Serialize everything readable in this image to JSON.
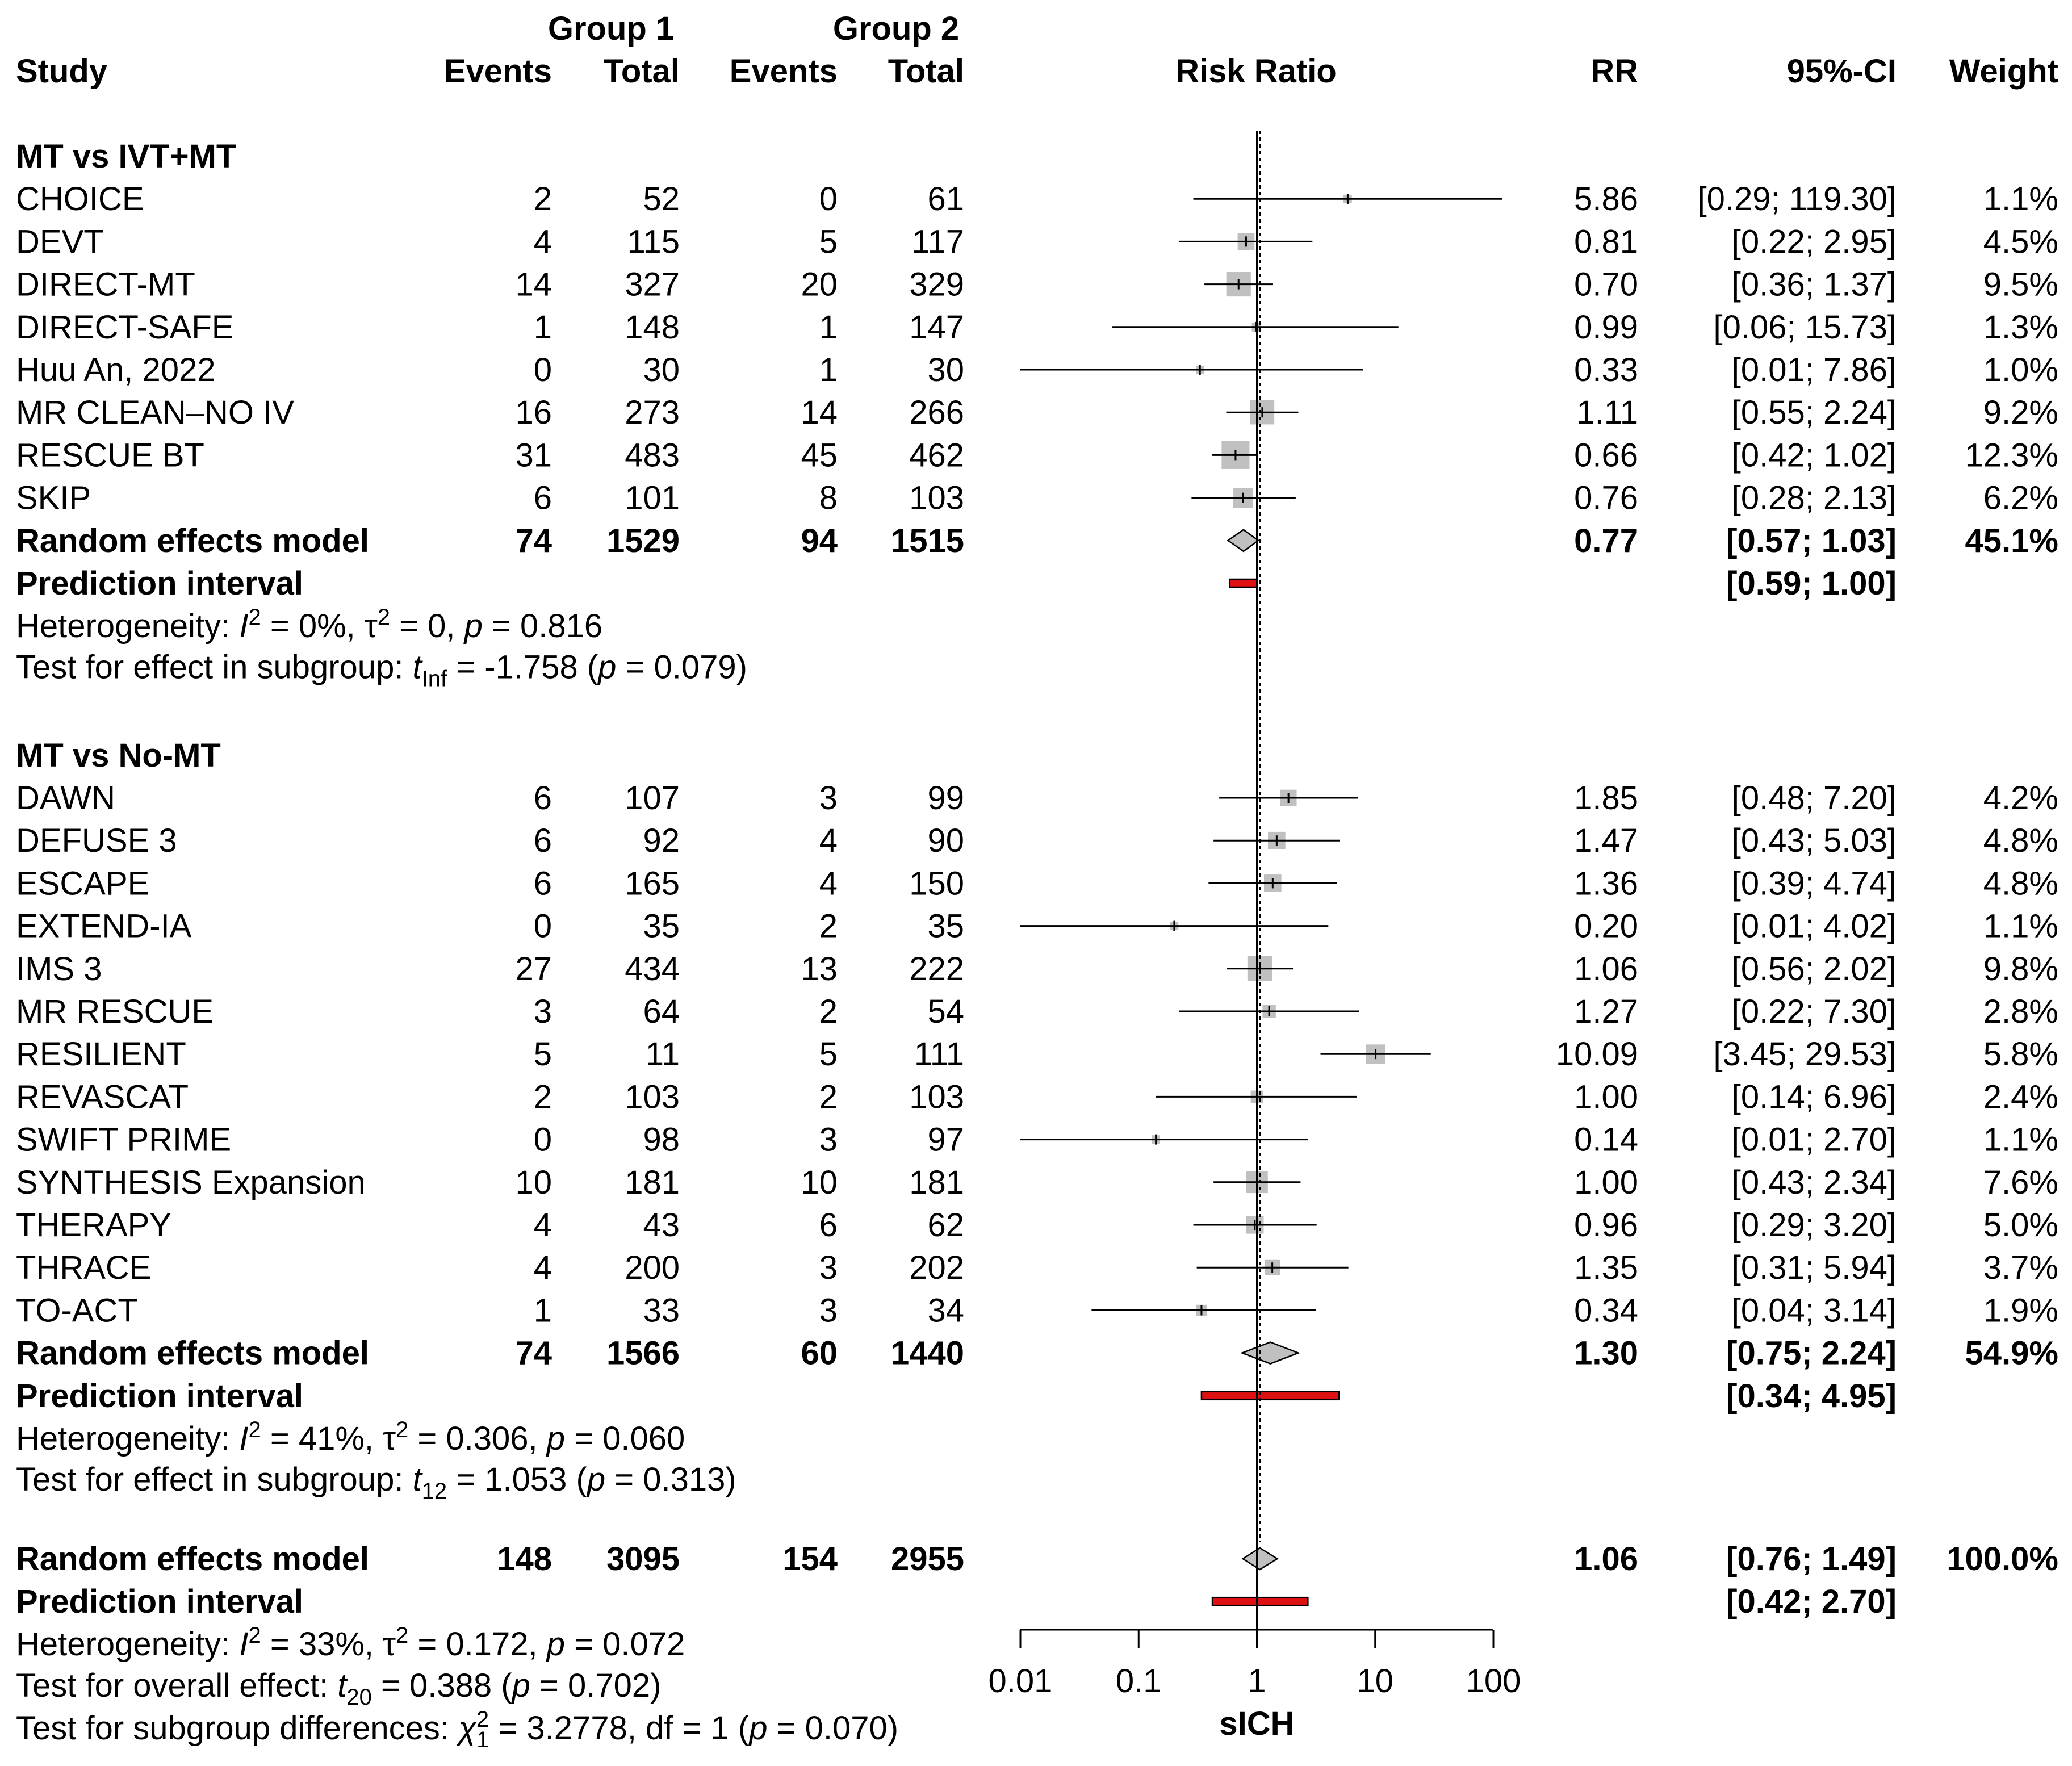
{
  "chart_data": {
    "type": "forest",
    "headers": {
      "study": "Study",
      "group1": "Group 1",
      "group2": "Group 2",
      "events": "Events",
      "total": "Total",
      "effect": "Risk Ratio",
      "rr": "RR",
      "ci": "95%-CI",
      "weight": "Weight"
    },
    "xaxis": {
      "scale": "log",
      "ticks": [
        0.01,
        0.1,
        1,
        10,
        100
      ],
      "tick_labels": [
        "0.01",
        "0.1",
        "1",
        "10",
        "100"
      ],
      "label": "sICH",
      "reference": 1,
      "overall_line": 1.06
    },
    "subgroups": [
      {
        "title": "MT vs IVT+MT",
        "studies": [
          {
            "name": "CHOICE",
            "e1": "2",
            "n1": "52",
            "e2": "0",
            "n2": "61",
            "rr": 5.86,
            "lo": 0.29,
            "hi": 119.3,
            "rr_text": "5.86",
            "ci_text": "[0.29; 119.30]",
            "weight": 1.1,
            "weight_text": "1.1%"
          },
          {
            "name": "DEVT",
            "e1": "4",
            "n1": "115",
            "e2": "5",
            "n2": "117",
            "rr": 0.81,
            "lo": 0.22,
            "hi": 2.95,
            "rr_text": "0.81",
            "ci_text": "[0.22;   2.95]",
            "weight": 4.5,
            "weight_text": "4.5%"
          },
          {
            "name": "DIRECT-MT",
            "e1": "14",
            "n1": "327",
            "e2": "20",
            "n2": "329",
            "rr": 0.7,
            "lo": 0.36,
            "hi": 1.37,
            "rr_text": "0.70",
            "ci_text": "[0.36;   1.37]",
            "weight": 9.5,
            "weight_text": "9.5%"
          },
          {
            "name": "DIRECT-SAFE",
            "e1": "1",
            "n1": "148",
            "e2": "1",
            "n2": "147",
            "rr": 0.99,
            "lo": 0.06,
            "hi": 15.73,
            "rr_text": "0.99",
            "ci_text": "[0.06;  15.73]",
            "weight": 1.3,
            "weight_text": "1.3%"
          },
          {
            "name": "Huu An, 2022",
            "e1": "0",
            "n1": "30",
            "e2": "1",
            "n2": "30",
            "rr": 0.33,
            "lo": 0.01,
            "hi": 7.86,
            "rr_text": "0.33",
            "ci_text": "[0.01;   7.86]",
            "weight": 1.0,
            "weight_text": "1.0%"
          },
          {
            "name": "MR CLEAN–NO IV",
            "e1": "16",
            "n1": "273",
            "e2": "14",
            "n2": "266",
            "rr": 1.11,
            "lo": 0.55,
            "hi": 2.24,
            "rr_text": "1.11",
            "ci_text": "[0.55;   2.24]",
            "weight": 9.2,
            "weight_text": "9.2%"
          },
          {
            "name": "RESCUE BT",
            "e1": "31",
            "n1": "483",
            "e2": "45",
            "n2": "462",
            "rr": 0.66,
            "lo": 0.42,
            "hi": 1.02,
            "rr_text": "0.66",
            "ci_text": "[0.42;   1.02]",
            "weight": 12.3,
            "weight_text": "12.3%"
          },
          {
            "name": "SKIP",
            "e1": "6",
            "n1": "101",
            "e2": "8",
            "n2": "103",
            "rr": 0.76,
            "lo": 0.28,
            "hi": 2.13,
            "rr_text": "0.76",
            "ci_text": "[0.28;   2.13]",
            "weight": 6.2,
            "weight_text": "6.2%"
          }
        ],
        "model": {
          "label": "Random effects model",
          "e1": "74",
          "n1": "1529",
          "e2": "94",
          "n2": "1515",
          "rr": 0.77,
          "lo": 0.57,
          "hi": 1.03,
          "rr_text": "0.77",
          "ci_text": "[0.57;   1.03]",
          "weight_text": "45.1%"
        },
        "prediction": {
          "label": "Prediction interval",
          "lo": 0.59,
          "hi": 1.0,
          "ci_text": "[0.59;   1.00]"
        },
        "heterogeneity": {
          "prefix": "Heterogeneity: ",
          "I": "I",
          "sup1": "2",
          "mid": " = 0%, τ",
          "sup2": "2",
          "mid2": " = 0, ",
          "p": "p",
          "tail": " = 0.816"
        },
        "test": {
          "prefix": "Test for effect in subgroup: ",
          "t": "t",
          "sub": "Inf",
          "mid": " = -1.758 (",
          "p": "p",
          "tail": " = 0.079)"
        }
      },
      {
        "title": "MT vs No-MT",
        "studies": [
          {
            "name": "DAWN",
            "e1": "6",
            "n1": "107",
            "e2": "3",
            "n2": "99",
            "rr": 1.85,
            "lo": 0.48,
            "hi": 7.2,
            "rr_text": "1.85",
            "ci_text": "[0.48;   7.20]",
            "weight": 4.2,
            "weight_text": "4.2%"
          },
          {
            "name": "DEFUSE 3",
            "e1": "6",
            "n1": "92",
            "e2": "4",
            "n2": "90",
            "rr": 1.47,
            "lo": 0.43,
            "hi": 5.03,
            "rr_text": "1.47",
            "ci_text": "[0.43;   5.03]",
            "weight": 4.8,
            "weight_text": "4.8%"
          },
          {
            "name": "ESCAPE",
            "e1": "6",
            "n1": "165",
            "e2": "4",
            "n2": "150",
            "rr": 1.36,
            "lo": 0.39,
            "hi": 4.74,
            "rr_text": "1.36",
            "ci_text": "[0.39;   4.74]",
            "weight": 4.8,
            "weight_text": "4.8%"
          },
          {
            "name": "EXTEND-IA",
            "e1": "0",
            "n1": "35",
            "e2": "2",
            "n2": "35",
            "rr": 0.2,
            "lo": 0.01,
            "hi": 4.02,
            "rr_text": "0.20",
            "ci_text": "[0.01;   4.02]",
            "weight": 1.1,
            "weight_text": "1.1%"
          },
          {
            "name": "IMS 3",
            "e1": "27",
            "n1": "434",
            "e2": "13",
            "n2": "222",
            "rr": 1.06,
            "lo": 0.56,
            "hi": 2.02,
            "rr_text": "1.06",
            "ci_text": "[0.56;   2.02]",
            "weight": 9.8,
            "weight_text": "9.8%"
          },
          {
            "name": "MR RESCUE",
            "e1": "3",
            "n1": "64",
            "e2": "2",
            "n2": "54",
            "rr": 1.27,
            "lo": 0.22,
            "hi": 7.3,
            "rr_text": "1.27",
            "ci_text": "[0.22;   7.30]",
            "weight": 2.8,
            "weight_text": "2.8%"
          },
          {
            "name": "RESILIENT",
            "e1": "5",
            "n1": "11",
            "e2": "5",
            "n2": "111",
            "rr": 10.09,
            "lo": 3.45,
            "hi": 29.53,
            "rr_text": "10.09",
            "ci_text": "[3.45;  29.53]",
            "weight": 5.8,
            "weight_text": "5.8%"
          },
          {
            "name": "REVASCAT",
            "e1": "2",
            "n1": "103",
            "e2": "2",
            "n2": "103",
            "rr": 1.0,
            "lo": 0.14,
            "hi": 6.96,
            "rr_text": "1.00",
            "ci_text": "[0.14;   6.96]",
            "weight": 2.4,
            "weight_text": "2.4%"
          },
          {
            "name": "SWIFT PRIME",
            "e1": "0",
            "n1": "98",
            "e2": "3",
            "n2": "97",
            "rr": 0.14,
            "lo": 0.01,
            "hi": 2.7,
            "rr_text": "0.14",
            "ci_text": "[0.01;   2.70]",
            "weight": 1.1,
            "weight_text": "1.1%"
          },
          {
            "name": "SYNTHESIS Expansion",
            "e1": "10",
            "n1": "181",
            "e2": "10",
            "n2": "181",
            "rr": 1.0,
            "lo": 0.43,
            "hi": 2.34,
            "rr_text": "1.00",
            "ci_text": "[0.43;   2.34]",
            "weight": 7.6,
            "weight_text": "7.6%"
          },
          {
            "name": "THERAPY",
            "e1": "4",
            "n1": "43",
            "e2": "6",
            "n2": "62",
            "rr": 0.96,
            "lo": 0.29,
            "hi": 3.2,
            "rr_text": "0.96",
            "ci_text": "[0.29;   3.20]",
            "weight": 5.0,
            "weight_text": "5.0%"
          },
          {
            "name": "THRACE",
            "e1": "4",
            "n1": "200",
            "e2": "3",
            "n2": "202",
            "rr": 1.35,
            "lo": 0.31,
            "hi": 5.94,
            "rr_text": "1.35",
            "ci_text": "[0.31;   5.94]",
            "weight": 3.7,
            "weight_text": "3.7%"
          },
          {
            "name": "TO-ACT",
            "e1": "1",
            "n1": "33",
            "e2": "3",
            "n2": "34",
            "rr": 0.34,
            "lo": 0.04,
            "hi": 3.14,
            "rr_text": "0.34",
            "ci_text": "[0.04;   3.14]",
            "weight": 1.9,
            "weight_text": "1.9%"
          }
        ],
        "model": {
          "label": "Random effects model",
          "e1": "74",
          "n1": "1566",
          "e2": "60",
          "n2": "1440",
          "rr": 1.3,
          "lo": 0.75,
          "hi": 2.24,
          "rr_text": "1.30",
          "ci_text": "[0.75;   2.24]",
          "weight_text": "54.9%"
        },
        "prediction": {
          "label": "Prediction interval",
          "lo": 0.34,
          "hi": 4.95,
          "ci_text": "[0.34;   4.95]"
        },
        "heterogeneity": {
          "prefix": "Heterogeneity: ",
          "I": "I",
          "sup1": "2",
          "mid": " = 41%, τ",
          "sup2": "2",
          "mid2": " = 0.306, ",
          "p": "p",
          "tail": " = 0.060"
        },
        "test": {
          "prefix": "Test for effect in subgroup: ",
          "t": "t",
          "sub": "12",
          "mid": " = 1.053 (",
          "p": "p",
          "tail": " = 0.313)"
        }
      }
    ],
    "overall": {
      "model": {
        "label": "Random effects model",
        "e1": "148",
        "n1": "3095",
        "e2": "154",
        "n2": "2955",
        "rr": 1.06,
        "lo": 0.76,
        "hi": 1.49,
        "rr_text": "1.06",
        "ci_text": "[0.76;   1.49]",
        "weight_text": "100.0%"
      },
      "prediction": {
        "label": "Prediction interval",
        "lo": 0.42,
        "hi": 2.7,
        "ci_text": "[0.42;   2.70]"
      },
      "heterogeneity": {
        "prefix": "Heterogeneity: ",
        "I": "I",
        "sup1": "2",
        "mid": " = 33%, τ",
        "sup2": "2",
        "mid2": " = 0.172, ",
        "p": "p",
        "tail": " = 0.072"
      },
      "test_overall": {
        "prefix": "Test for overall effect: ",
        "t": "t",
        "sub": "20",
        "mid": " = 0.388 (",
        "p": "p",
        "tail": " = 0.702)"
      },
      "test_subgroups": {
        "prefix": "Test for subgroup differences: ",
        "chi": "χ",
        "sup": "2",
        "sub": "1",
        "mid": " = 3.2778, df = 1 (",
        "p": "p",
        "tail": " = 0.070)"
      }
    },
    "colors": {
      "square": "#c0c0c0",
      "diamond": "#c0c0c0",
      "prediction": "#dd1111",
      "line": "#000000"
    }
  }
}
